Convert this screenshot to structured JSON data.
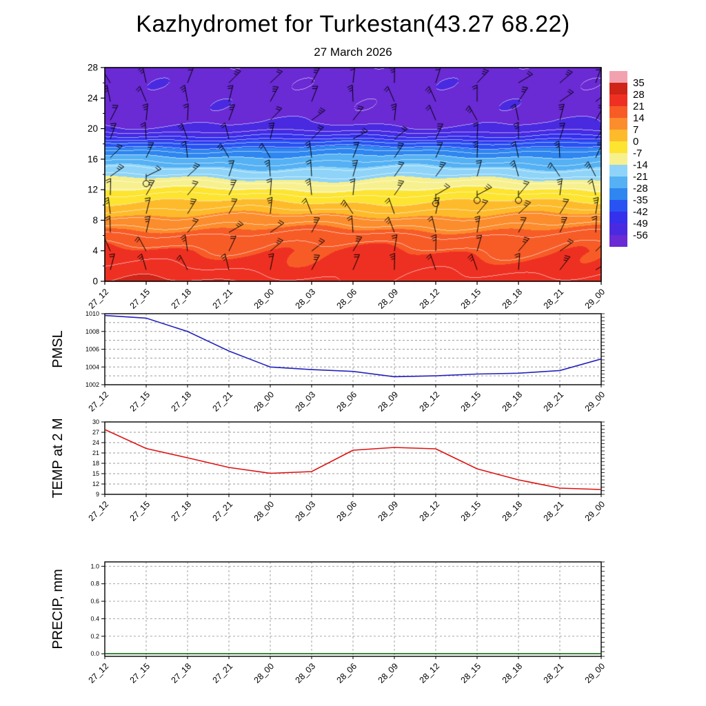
{
  "title": "Kazhydromet for Turkestan(43.27 68.22)",
  "subtitle": "27 March 2026",
  "time_labels": [
    "27_12",
    "27_15",
    "27_18",
    "27_21",
    "28_00",
    "28_03",
    "28_06",
    "28_09",
    "28_12",
    "28_15",
    "28_18",
    "28_21",
    "29_00"
  ],
  "chart_data": [
    {
      "type": "heatmap",
      "id": "cross-section",
      "name": "upper-air time-height cross section with temperature fill and wind barbs",
      "x": [
        "27_12",
        "27_15",
        "27_18",
        "27_21",
        "28_00",
        "28_03",
        "28_06",
        "28_09",
        "28_12",
        "28_15",
        "28_18",
        "28_21",
        "29_00"
      ],
      "ylim": [
        0,
        28
      ],
      "yticks": [
        0,
        4,
        8,
        12,
        16,
        20,
        24,
        28
      ],
      "contour_interval_c": 4,
      "colorbar": {
        "labels": [
          35,
          28,
          21,
          14,
          7,
          0,
          -7,
          -14,
          -21,
          -28,
          -35,
          -42,
          -49,
          -56
        ],
        "colors": [
          "#f2a2ae",
          "#cf2418",
          "#ee3023",
          "#f75c27",
          "#fc8d2d",
          "#fdbb2b",
          "#fde430",
          "#f7f08e",
          "#8fd4f8",
          "#55b1f4",
          "#2f86f0",
          "#2853f2",
          "#3430ec",
          "#4a2ae0",
          "#6a2ad4"
        ]
      },
      "temperature_profile": {
        "heights_km": [
          0,
          1,
          2,
          3,
          4,
          5,
          6,
          7,
          8,
          9,
          10,
          11,
          12,
          13,
          14,
          15,
          16,
          17,
          18,
          19,
          20,
          21,
          22,
          28
        ],
        "temps_c": [
          26,
          24.5,
          23,
          22,
          21,
          19.5,
          17,
          13.5,
          10,
          6,
          2,
          -2,
          -7,
          -12,
          -16.5,
          -21,
          -25.5,
          -31,
          -38,
          -47,
          -54,
          -57,
          -58,
          -58
        ]
      },
      "wind_barbs": {
        "columns": 13,
        "rows": 11,
        "description": "black wind barbs at each time step, predominantly westerly flow aloft"
      },
      "calm_points": [
        {
          "x_index": 1,
          "height_km": 12.8
        },
        {
          "x_index": 8,
          "height_km": 10.2
        },
        {
          "x_index": 9,
          "height_km": 10.6
        },
        {
          "x_index": 10,
          "height_km": 10.6
        }
      ]
    },
    {
      "type": "line",
      "id": "pmsl",
      "name": "PMSL",
      "ylabel": "PMSL",
      "color": "#2222bb",
      "x": [
        "27_12",
        "27_15",
        "27_18",
        "27_21",
        "28_00",
        "28_03",
        "28_06",
        "28_09",
        "28_12",
        "28_15",
        "28_18",
        "28_21",
        "29_00"
      ],
      "values": [
        1009.8,
        1009.5,
        1008.0,
        1005.8,
        1004.0,
        1003.7,
        1003.5,
        1002.9,
        1003.0,
        1003.2,
        1003.3,
        1003.6,
        1004.9
      ],
      "ylim": [
        1002,
        1010
      ],
      "yticks": [
        1002,
        1004,
        1006,
        1008,
        1010
      ],
      "ygrid": [
        1003,
        1004,
        1005,
        1006,
        1007,
        1008,
        1009
      ],
      "decimals": 0
    },
    {
      "type": "line",
      "id": "temp2m",
      "name": "TEMP at 2 M",
      "ylabel": "TEMP at 2 M",
      "color": "#dd1111",
      "x": [
        "27_12",
        "27_15",
        "27_18",
        "27_21",
        "28_00",
        "28_03",
        "28_06",
        "28_09",
        "28_12",
        "28_15",
        "28_18",
        "28_21",
        "29_00"
      ],
      "values": [
        27.8,
        22.3,
        19.6,
        16.8,
        15.1,
        15.6,
        21.8,
        22.6,
        22.2,
        16.4,
        13.2,
        10.8,
        10.4
      ],
      "ylim": [
        9,
        30
      ],
      "yticks": [
        9,
        12,
        15,
        18,
        21,
        24,
        27,
        30
      ],
      "ygrid": [
        12,
        15,
        18,
        21,
        24,
        27
      ],
      "decimals": 0
    },
    {
      "type": "line",
      "id": "precip",
      "name": "PRECIP, mm",
      "ylabel": "PRECIP, mm",
      "color": "#0a6a0a",
      "x": [
        "27_12",
        "27_15",
        "27_18",
        "27_21",
        "28_00",
        "28_03",
        "28_06",
        "28_09",
        "28_12",
        "28_15",
        "28_18",
        "28_21",
        "29_00"
      ],
      "values": [
        0,
        0,
        0,
        0,
        0,
        0,
        0,
        0,
        0,
        0,
        0,
        0,
        0
      ],
      "ylim": [
        -0.03,
        1.05
      ],
      "yticks": [
        0,
        0.2,
        0.4,
        0.6,
        0.8,
        1.0
      ],
      "ygrid": [
        0.2,
        0.4,
        0.6,
        0.8,
        1.0
      ],
      "decimals": 1
    }
  ]
}
